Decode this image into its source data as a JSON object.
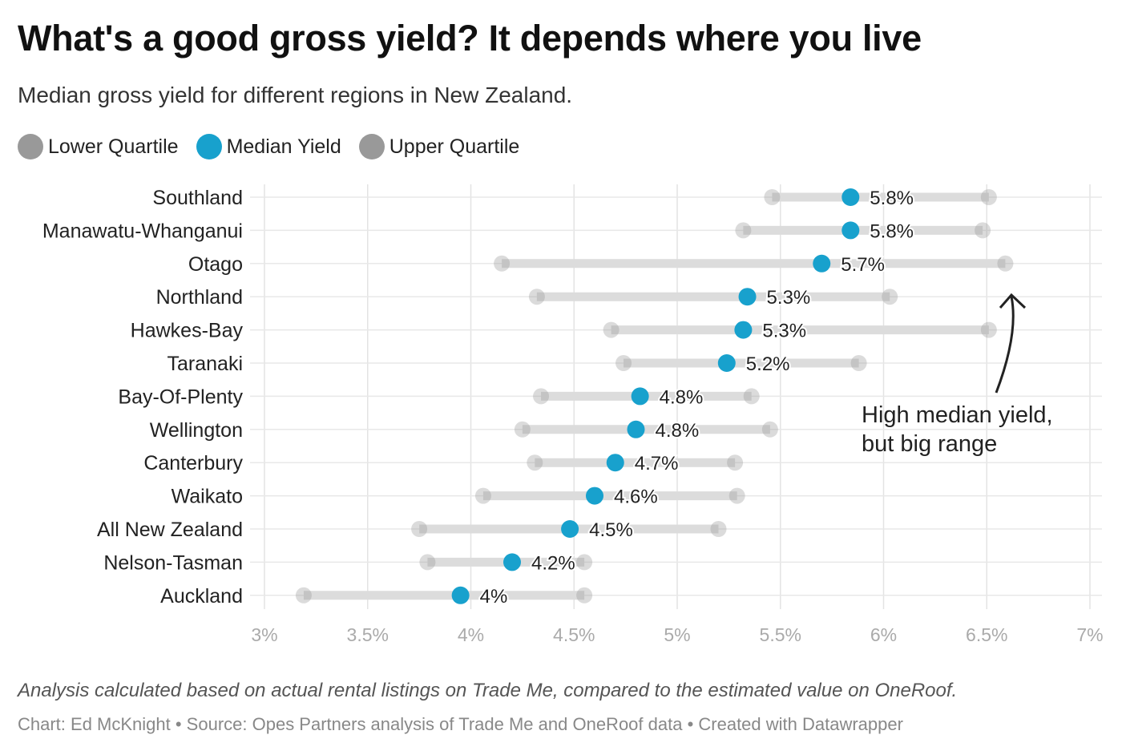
{
  "chart_data": {
    "type": "dumbbell",
    "title": "What's a good gross yield? It depends where you live",
    "subtitle": "Median gross yield for different regions in New Zealand.",
    "legend": [
      {
        "name": "Lower Quartile",
        "color": "#999999"
      },
      {
        "name": "Median Yield",
        "color": "#18a1cd"
      },
      {
        "name": "Upper Quartile",
        "color": "#999999"
      }
    ],
    "xlim": [
      3,
      7
    ],
    "xticks": [
      3,
      3.5,
      4,
      4.5,
      5,
      5.5,
      6,
      6.5,
      7
    ],
    "xtick_labels": [
      "3%",
      "3.5%",
      "4%",
      "4.5%",
      "5%",
      "5.5%",
      "6%",
      "6.5%",
      "7%"
    ],
    "grid": true,
    "rows": [
      {
        "region": "Southland",
        "lower": 5.46,
        "median": 5.84,
        "upper": 6.51,
        "label": "5.8%"
      },
      {
        "region": "Manawatu-Whanganui",
        "lower": 5.32,
        "median": 5.84,
        "upper": 6.48,
        "label": "5.8%"
      },
      {
        "region": "Otago",
        "lower": 4.15,
        "median": 5.7,
        "upper": 6.59,
        "label": "5.7%"
      },
      {
        "region": "Northland",
        "lower": 4.32,
        "median": 5.34,
        "upper": 6.03,
        "label": "5.3%"
      },
      {
        "region": "Hawkes-Bay",
        "lower": 4.68,
        "median": 5.32,
        "upper": 6.51,
        "label": "5.3%"
      },
      {
        "region": "Taranaki",
        "lower": 4.74,
        "median": 5.24,
        "upper": 5.88,
        "label": "5.2%"
      },
      {
        "region": "Bay-Of-Plenty",
        "lower": 4.34,
        "median": 4.82,
        "upper": 5.36,
        "label": "4.8%"
      },
      {
        "region": "Wellington",
        "lower": 4.25,
        "median": 4.8,
        "upper": 5.45,
        "label": "4.8%"
      },
      {
        "region": "Canterbury",
        "lower": 4.31,
        "median": 4.7,
        "upper": 5.28,
        "label": "4.7%"
      },
      {
        "region": "Waikato",
        "lower": 4.06,
        "median": 4.6,
        "upper": 5.29,
        "label": "4.6%"
      },
      {
        "region": "All New Zealand",
        "lower": 3.75,
        "median": 4.48,
        "upper": 5.2,
        "label": "4.5%"
      },
      {
        "region": "Nelson-Tasman",
        "lower": 3.79,
        "median": 4.2,
        "upper": 4.55,
        "label": "4.2%"
      },
      {
        "region": "Auckland",
        "lower": 3.19,
        "median": 3.95,
        "upper": 4.55,
        "label": "4%"
      }
    ],
    "annotation": {
      "line1": "High median yield,",
      "line2": "but big range",
      "points_to": "Otago"
    }
  },
  "note": "Analysis calculated based on actual rental listings on Trade Me, compared to the estimated value on OneRoof.",
  "footer": "Chart: Ed McKnight • Source: Opes Partners analysis of Trade Me and OneRoof data • Created with Datawrapper"
}
